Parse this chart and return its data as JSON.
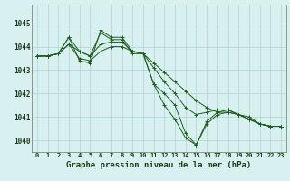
{
  "xlabel": "Graphe pression niveau de la mer (hPa)",
  "bg_color": "#d8f0f0",
  "line_color": "#1e5c1e",
  "grid_color": "#aed4d4",
  "xlim": [
    -0.5,
    23.5
  ],
  "ylim": [
    1039.5,
    1045.8
  ],
  "yticks": [
    1040,
    1041,
    1042,
    1043,
    1044,
    1045
  ],
  "xticks": [
    0,
    1,
    2,
    3,
    4,
    5,
    6,
    7,
    8,
    9,
    10,
    11,
    12,
    13,
    14,
    15,
    16,
    17,
    18,
    19,
    20,
    21,
    22,
    23
  ],
  "series": [
    [
      1043.6,
      1043.6,
      1043.7,
      1044.4,
      1043.8,
      1043.6,
      1044.6,
      1044.3,
      1044.3,
      1043.7,
      1043.7,
      1042.4,
      1042.0,
      1041.5,
      1040.3,
      1039.8,
      1040.7,
      1041.1,
      1041.2,
      1041.1,
      1040.9,
      1040.7,
      1040.6,
      1040.6
    ],
    [
      1043.6,
      1043.6,
      1043.7,
      1044.1,
      1043.8,
      1043.6,
      1044.1,
      1044.2,
      1044.2,
      1043.8,
      1043.7,
      1043.3,
      1042.9,
      1042.5,
      1042.1,
      1041.7,
      1041.4,
      1041.2,
      1041.3,
      1041.1,
      1040.9,
      1040.7,
      1040.6,
      1040.6
    ],
    [
      1043.6,
      1043.6,
      1043.7,
      1044.1,
      1043.5,
      1043.4,
      1043.8,
      1044.0,
      1044.0,
      1043.8,
      1043.7,
      1043.1,
      1042.5,
      1042.0,
      1041.4,
      1041.1,
      1041.2,
      1041.3,
      1041.3,
      1041.1,
      1040.9,
      1040.7,
      1040.6,
      1040.6
    ],
    [
      1043.6,
      1043.6,
      1043.7,
      1044.4,
      1043.4,
      1043.3,
      1044.7,
      1044.4,
      1044.4,
      1043.8,
      1043.7,
      1042.4,
      1041.5,
      1040.9,
      1040.1,
      1039.8,
      1040.8,
      1041.2,
      1041.2,
      1041.1,
      1041.0,
      1040.7,
      1040.6,
      1040.6
    ]
  ],
  "xlabel_fontsize": 6.5,
  "ytick_fontsize": 5.5,
  "xtick_fontsize": 5.0
}
